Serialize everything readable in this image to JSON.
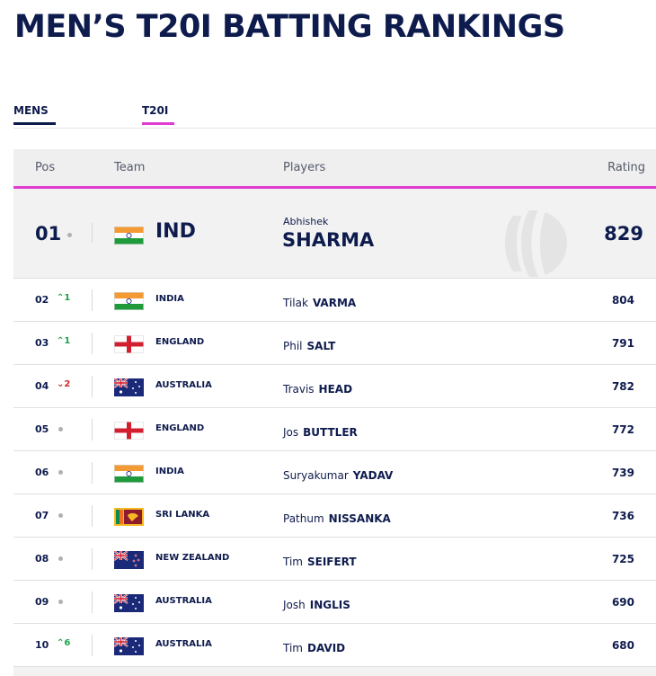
{
  "title": "MEN’S T20I BATTING RANKINGS",
  "tabs": [
    {
      "label": "MENS"
    },
    {
      "label": "T20I"
    }
  ],
  "columns": {
    "pos": "Pos",
    "team": "Team",
    "players": "Players",
    "rating": "Rating"
  },
  "leader": {
    "pos": "01",
    "team": "IND",
    "flag": "india",
    "first": "Abhishek",
    "last": "SHARMA",
    "rating": "829"
  },
  "rows": [
    {
      "pos": "02",
      "move": "^1",
      "dir": "up",
      "country": "INDIA",
      "flag": "india",
      "first": "Tilak",
      "last": "VARMA",
      "rating": "804"
    },
    {
      "pos": "03",
      "move": "^1",
      "dir": "up",
      "country": "ENGLAND",
      "flag": "england",
      "first": "Phil",
      "last": "SALT",
      "rating": "791"
    },
    {
      "pos": "04",
      "move": "v2",
      "dir": "down",
      "country": "AUSTRALIA",
      "flag": "australia",
      "first": "Travis",
      "last": "HEAD",
      "rating": "782"
    },
    {
      "pos": "05",
      "move": "",
      "dir": "none",
      "country": "ENGLAND",
      "flag": "england",
      "first": "Jos",
      "last": "BUTTLER",
      "rating": "772"
    },
    {
      "pos": "06",
      "move": "",
      "dir": "none",
      "country": "INDIA",
      "flag": "india",
      "first": "Suryakumar",
      "last": "YADAV",
      "rating": "739"
    },
    {
      "pos": "07",
      "move": "",
      "dir": "none",
      "country": "SRI LANKA",
      "flag": "srilanka",
      "first": "Pathum",
      "last": "NISSANKA",
      "rating": "736"
    },
    {
      "pos": "08",
      "move": "",
      "dir": "none",
      "country": "NEW ZEALAND",
      "flag": "newzealand",
      "first": "Tim",
      "last": "SEIFERT",
      "rating": "725"
    },
    {
      "pos": "09",
      "move": "",
      "dir": "none",
      "country": "AUSTRALIA",
      "flag": "australia",
      "first": "Josh",
      "last": "INGLIS",
      "rating": "690"
    },
    {
      "pos": "10",
      "move": "^6",
      "dir": "up",
      "country": "AUSTRALIA",
      "flag": "australia",
      "first": "Tim",
      "last": "DAVID",
      "rating": "680"
    }
  ],
  "colors": {
    "navy": "#0e1b4d",
    "accent": "#e03cd0",
    "up": "#1aa34a",
    "down": "#d22a2a"
  }
}
